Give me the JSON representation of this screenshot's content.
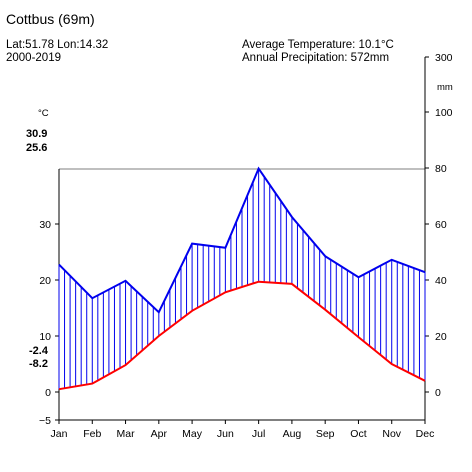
{
  "header": {
    "title": "Cottbus (69m)",
    "coords": "Lat:51.78 Lon:14.32",
    "period": "2000-2019",
    "avg_temp": "Average Temperature: 10.1°C",
    "annual_precip": "Annual Precipitation: 572mm"
  },
  "left_axis": {
    "unit": "°C",
    "ticks": [
      "−5",
      "0",
      "10",
      "20",
      "30"
    ],
    "annot_max": [
      "30.9",
      "25.6"
    ],
    "annot_min": [
      "-2.4",
      "-8.2"
    ]
  },
  "right_axis": {
    "unit": "mm",
    "ticks": [
      "0",
      "20",
      "40",
      "60",
      "80",
      "100",
      "300"
    ]
  },
  "colors": {
    "temperature": "#ff0000",
    "precipitation": "#0000ee"
  },
  "chart_data": {
    "type": "line",
    "title": "Cottbus (69m)",
    "categories": [
      "Jan",
      "Feb",
      "Mar",
      "Apr",
      "May",
      "Jun",
      "Jul",
      "Aug",
      "Sep",
      "Oct",
      "Nov",
      "Dec"
    ],
    "series": [
      {
        "axis": "left",
        "values": [
          0.5,
          1.5,
          4.8,
          10.0,
          14.5,
          17.8,
          19.7,
          19.3,
          14.7,
          9.8,
          5.0,
          2.0
        ]
      },
      {
        "axis": "right",
        "values": [
          45.5,
          33.5,
          39.7,
          28.5,
          53.0,
          51.5,
          79.8,
          62.5,
          48.5,
          41.0,
          47.2,
          42.8
        ]
      }
    ],
    "y_left_ticks": [
      -5,
      0,
      10,
      20,
      30
    ],
    "y_right_ticks": [
      0,
      20,
      40,
      60,
      80,
      100
    ],
    "y_right_top_label_value": 300,
    "ylim_left": [
      -5,
      30
    ],
    "ylim_right": [
      0,
      100
    ],
    "grid": false,
    "legend": "none"
  }
}
